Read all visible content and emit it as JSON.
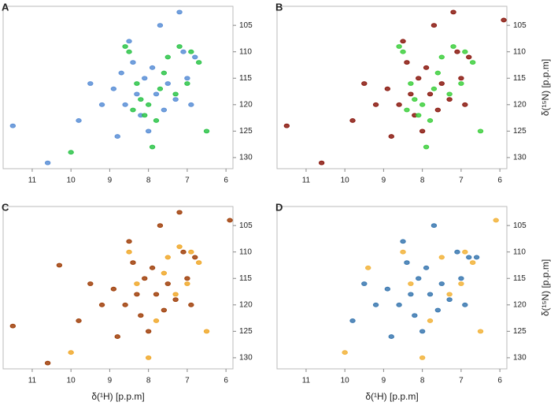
{
  "chart_data": [
    {
      "type": "scatter",
      "panel_label": "A",
      "xlim": [
        11.75,
        5.82
      ],
      "ylim": [
        132.1,
        101.4
      ],
      "xticks": [
        11,
        10,
        9,
        8,
        7,
        6
      ],
      "yticks": [
        105,
        110,
        115,
        120,
        125,
        130
      ],
      "series": [
        {
          "color": "#5b8fd6",
          "x": [
            8.4,
            8.1,
            7.8,
            8.6,
            8.2,
            7.5,
            7.3,
            8.9,
            8.0,
            7.9,
            7.1,
            6.8,
            8.5,
            9.2,
            9.5,
            7.6,
            8.3,
            7.0,
            6.9,
            9.8,
            10.6,
            11.5,
            8.8,
            7.7,
            7.2,
            8.7
          ],
          "values": [
            112,
            115,
            118,
            120,
            122,
            116,
            119,
            117,
            125,
            113,
            110,
            111,
            108,
            120,
            116,
            121,
            118,
            115,
            120,
            123,
            131,
            124,
            126,
            105,
            102.5,
            114
          ]
        },
        {
          "color": "#2ec44a",
          "x": [
            7.5,
            7.2,
            6.7,
            8.3,
            8.0,
            7.8,
            8.1,
            7.6,
            8.5,
            7.9,
            7.3,
            8.2,
            6.5,
            10.0,
            8.6,
            7.0,
            8.4,
            7.7,
            6.9
          ],
          "values": [
            111,
            109,
            112,
            116,
            120,
            123,
            122,
            114,
            110,
            128,
            118,
            119,
            125,
            129,
            109,
            116,
            121,
            117,
            110
          ]
        }
      ]
    },
    {
      "type": "scatter",
      "panel_label": "B",
      "xlim": [
        11.75,
        5.82
      ],
      "ylim": [
        132.1,
        101.4
      ],
      "xticks": [
        11,
        10,
        9,
        8,
        7,
        6
      ],
      "yticks": [
        105,
        110,
        115,
        120,
        125,
        130
      ],
      "ylabel": "δ(¹⁵N) [p.p.m]",
      "series": [
        {
          "color": "#8b1a10",
          "x": [
            8.4,
            8.1,
            7.8,
            8.6,
            8.2,
            7.5,
            7.3,
            8.9,
            8.0,
            7.9,
            7.1,
            6.8,
            8.5,
            9.2,
            9.5,
            7.6,
            8.3,
            7.0,
            6.9,
            9.8,
            10.6,
            11.5,
            8.8,
            7.7,
            7.2,
            5.9
          ],
          "values": [
            112,
            115,
            118,
            120,
            122,
            116,
            119,
            117,
            125,
            113,
            110,
            111,
            108,
            120,
            116,
            121,
            118,
            115,
            120,
            123,
            131,
            124,
            126,
            105,
            102.5,
            104
          ]
        },
        {
          "color": "#3fcf3f",
          "x": [
            7.5,
            7.2,
            6.7,
            8.3,
            8.0,
            7.8,
            8.1,
            7.6,
            8.5,
            7.9,
            7.3,
            8.2,
            6.5,
            8.6,
            7.0,
            8.4,
            7.7,
            6.9
          ],
          "values": [
            111,
            109,
            112,
            116,
            120,
            123,
            122,
            114,
            110,
            128,
            118,
            119,
            125,
            109,
            116,
            121,
            117,
            110
          ]
        }
      ]
    },
    {
      "type": "scatter",
      "panel_label": "C",
      "xlim": [
        11.75,
        5.82
      ],
      "ylim": [
        132.1,
        101.4
      ],
      "xticks": [
        11,
        10,
        9,
        8,
        7,
        6
      ],
      "yticks": [
        105,
        110,
        115,
        120,
        125,
        130
      ],
      "xlabel": "δ(¹H) [p.p.m]",
      "series": [
        {
          "color": "#f0a82a",
          "x": [
            7.5,
            7.2,
            6.7,
            8.3,
            7.8,
            7.6,
            8.5,
            7.3,
            6.5,
            10.0,
            7.0,
            6.9,
            8.0
          ],
          "values": [
            111,
            109,
            112,
            116,
            123,
            114,
            110,
            118,
            125,
            129,
            116,
            110,
            130
          ]
        },
        {
          "color": "#a0400a",
          "x": [
            8.4,
            8.1,
            7.8,
            8.6,
            8.2,
            7.5,
            7.3,
            8.9,
            8.0,
            7.9,
            7.1,
            6.8,
            8.5,
            9.2,
            9.5,
            7.6,
            8.3,
            7.0,
            6.9,
            9.8,
            10.6,
            11.5,
            8.8,
            7.7,
            7.2,
            5.9,
            10.3
          ],
          "values": [
            112,
            115,
            118,
            120,
            122,
            116,
            119,
            117,
            125,
            113,
            110,
            111,
            108,
            120,
            116,
            121,
            118,
            115,
            120,
            123,
            131,
            124,
            126,
            105,
            102.5,
            104,
            112.5
          ]
        }
      ]
    },
    {
      "type": "scatter",
      "panel_label": "D",
      "xlim": [
        11.75,
        5.82
      ],
      "ylim": [
        132.1,
        101.4
      ],
      "xticks": [
        11,
        10,
        9,
        8,
        7,
        6
      ],
      "yticks": [
        105,
        110,
        115,
        120,
        125,
        130
      ],
      "xlabel": "δ(¹H) [p.p.m]",
      "ylabel": "δ(¹⁵N) [p.p.m]",
      "series": [
        {
          "color": "#f2b33a",
          "x": [
            7.5,
            6.7,
            8.3,
            7.8,
            8.5,
            7.3,
            6.5,
            10.0,
            7.0,
            6.9,
            8.0,
            9.4,
            6.1
          ],
          "values": [
            111,
            112,
            116,
            123,
            110,
            118,
            125,
            129,
            116,
            110,
            130,
            113,
            104
          ]
        },
        {
          "color": "#3a78b0",
          "x": [
            8.4,
            8.1,
            7.8,
            8.6,
            8.2,
            7.5,
            7.3,
            8.9,
            8.0,
            7.9,
            7.1,
            6.8,
            8.5,
            9.2,
            9.5,
            7.6,
            8.3,
            7.0,
            6.9,
            9.8,
            8.8,
            7.7,
            6.6
          ],
          "values": [
            112,
            115,
            118,
            120,
            122,
            116,
            119,
            117,
            125,
            113,
            110,
            111,
            108,
            120,
            116,
            121,
            118,
            115,
            120,
            123,
            126,
            105,
            111
          ]
        }
      ]
    }
  ]
}
